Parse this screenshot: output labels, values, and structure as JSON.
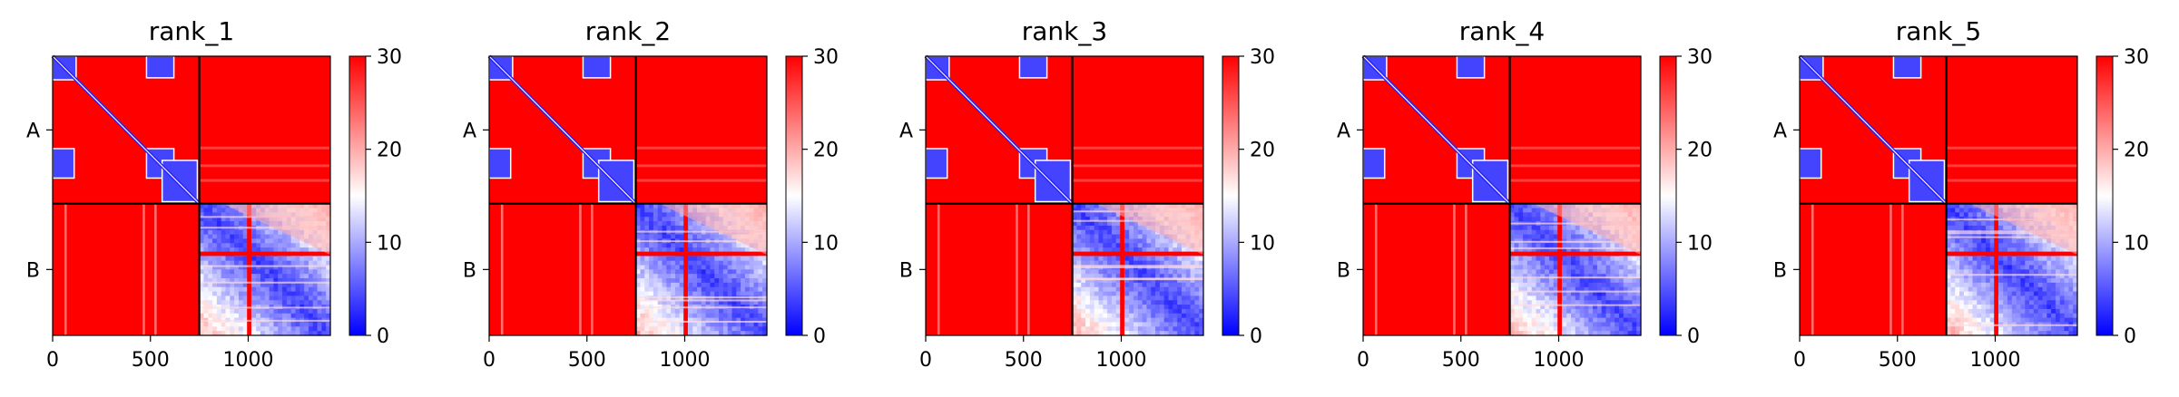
{
  "chart_data": {
    "type": "heatmap",
    "title": "",
    "colormap": {
      "name": "bwr",
      "vmin": 0,
      "vmax": 30,
      "ticks": [
        0,
        10,
        20,
        30
      ],
      "colors": {
        "low": "#0000ff",
        "mid": "#ffffff",
        "high": "#ff0000"
      }
    },
    "chains": [
      {
        "label": "A",
        "start": 0,
        "end": 750
      },
      {
        "label": "B",
        "start": 750,
        "end": 1420
      }
    ],
    "x_ticks": [
      0,
      500,
      1000
    ],
    "x_range": [
      0,
      1420
    ],
    "panels": [
      {
        "title": "rank_1",
        "inter_chain_pae": "high",
        "b_cross_bands": "weak"
      },
      {
        "title": "rank_2",
        "inter_chain_pae": "high",
        "b_cross_bands": "medium"
      },
      {
        "title": "rank_3",
        "inter_chain_pae": "high",
        "b_cross_bands": "weak"
      },
      {
        "title": "rank_4",
        "inter_chain_pae": "high",
        "b_cross_bands": "medium"
      },
      {
        "title": "rank_5",
        "inter_chain_pae": "high",
        "b_cross_bands": "weak"
      }
    ]
  }
}
